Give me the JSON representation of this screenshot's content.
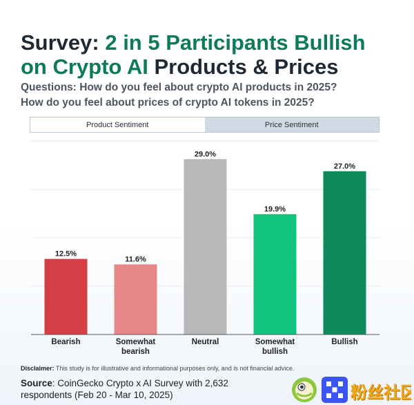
{
  "header": {
    "title_prefix": "Survey: ",
    "title_highlight_1": "2 in 5 Participants Bullish",
    "title_highlight_2": "on Crypto AI",
    "title_suffix": " Products & Prices",
    "question_1": "Questions: How do you feel about crypto AI products in 2025?",
    "question_2": "How do you feel about prices of crypto AI tokens in 2025?"
  },
  "tabs": [
    {
      "label": "Product Sentiment",
      "active": true
    },
    {
      "label": "Price Sentiment",
      "active": false
    }
  ],
  "chart_data": {
    "type": "bar",
    "title": "Product Sentiment",
    "categories": [
      "Bearish",
      "Somewhat bearish",
      "Neutral",
      "Somewhat bullish",
      "Bullish"
    ],
    "category_lines": [
      [
        "Bearish"
      ],
      [
        "Somewhat",
        "bearish"
      ],
      [
        "Neutral"
      ],
      [
        "Somewhat",
        "bullish"
      ],
      [
        "Bullish"
      ]
    ],
    "values": [
      12.5,
      11.6,
      29.0,
      19.9,
      27.0
    ],
    "value_labels": [
      "12.5%",
      "11.6%",
      "29.0%",
      "19.9%",
      "27.0%"
    ],
    "colors": [
      "#d43f45",
      "#e8878a",
      "#b8b8b8",
      "#12c47e",
      "#0d8a5c"
    ],
    "ylim": [
      0,
      32
    ],
    "grid": true,
    "xlabel": "",
    "ylabel": ""
  },
  "footer": {
    "disclaimer_label": "Disclaimer:",
    "disclaimer_text": " This study is for illustrative and informational purposes only, and is not financial advice.",
    "source_label": "Source",
    "source_text": ": CoinGecko Crypto x AI Survey with 2,632 respondents (Feb 20 - Mar 10, 2025)"
  },
  "watermark": {
    "text": "粉丝社区"
  },
  "colors": {
    "accent": "#0d7a5a",
    "tab_inactive": "#cfdae4"
  }
}
